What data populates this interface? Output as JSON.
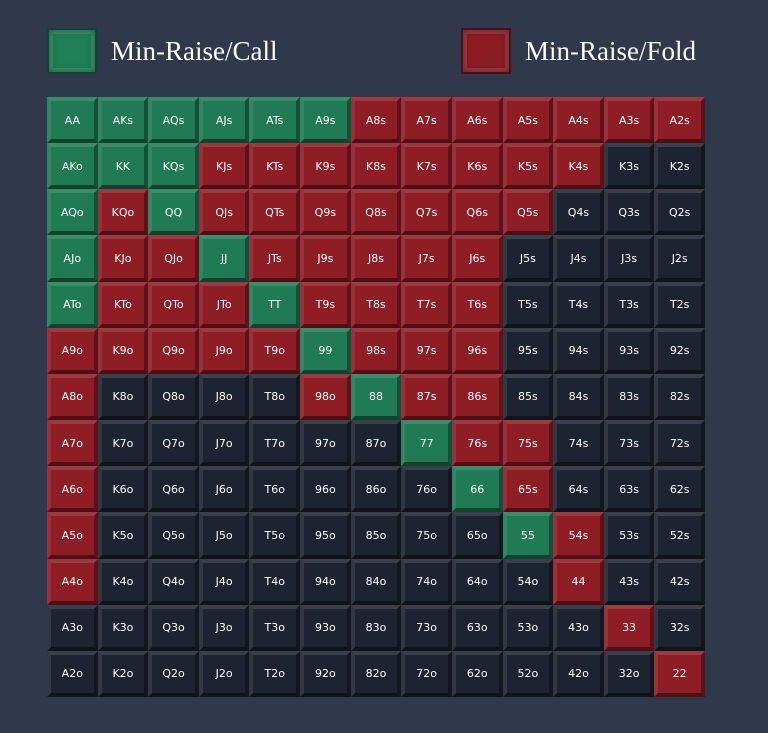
{
  "legend": {
    "call_label": "Min-Raise/Call",
    "fold_label": "Min-Raise/Fold"
  },
  "colors": {
    "call": "#1f7a55",
    "fold": "#8e1d26",
    "none": "#1d2431",
    "background": "#2f394b"
  },
  "grid": [
    [
      [
        "AA",
        "call"
      ],
      [
        "AKs",
        "call"
      ],
      [
        "AQs",
        "call"
      ],
      [
        "AJs",
        "call"
      ],
      [
        "ATs",
        "call"
      ],
      [
        "A9s",
        "call"
      ],
      [
        "A8s",
        "fold"
      ],
      [
        "A7s",
        "fold"
      ],
      [
        "A6s",
        "fold"
      ],
      [
        "A5s",
        "fold"
      ],
      [
        "A4s",
        "fold"
      ],
      [
        "A3s",
        "fold"
      ],
      [
        "A2s",
        "fold"
      ]
    ],
    [
      [
        "AKo",
        "call"
      ],
      [
        "KK",
        "call"
      ],
      [
        "KQs",
        "call"
      ],
      [
        "KJs",
        "fold"
      ],
      [
        "KTs",
        "fold"
      ],
      [
        "K9s",
        "fold"
      ],
      [
        "K8s",
        "fold"
      ],
      [
        "K7s",
        "fold"
      ],
      [
        "K6s",
        "fold"
      ],
      [
        "K5s",
        "fold"
      ],
      [
        "K4s",
        "fold"
      ],
      [
        "K3s",
        "none"
      ],
      [
        "K2s",
        "none"
      ]
    ],
    [
      [
        "AQo",
        "call"
      ],
      [
        "KQo",
        "fold"
      ],
      [
        "QQ",
        "call"
      ],
      [
        "QJs",
        "fold"
      ],
      [
        "QTs",
        "fold"
      ],
      [
        "Q9s",
        "fold"
      ],
      [
        "Q8s",
        "fold"
      ],
      [
        "Q7s",
        "fold"
      ],
      [
        "Q6s",
        "fold"
      ],
      [
        "Q5s",
        "fold"
      ],
      [
        "Q4s",
        "none"
      ],
      [
        "Q3s",
        "none"
      ],
      [
        "Q2s",
        "none"
      ]
    ],
    [
      [
        "AJo",
        "call"
      ],
      [
        "KJo",
        "fold"
      ],
      [
        "QJo",
        "fold"
      ],
      [
        "JJ",
        "call"
      ],
      [
        "JTs",
        "fold"
      ],
      [
        "J9s",
        "fold"
      ],
      [
        "J8s",
        "fold"
      ],
      [
        "J7s",
        "fold"
      ],
      [
        "J6s",
        "fold"
      ],
      [
        "J5s",
        "none"
      ],
      [
        "J4s",
        "none"
      ],
      [
        "J3s",
        "none"
      ],
      [
        "J2s",
        "none"
      ]
    ],
    [
      [
        "ATo",
        "call"
      ],
      [
        "KTo",
        "fold"
      ],
      [
        "QTo",
        "fold"
      ],
      [
        "JTo",
        "fold"
      ],
      [
        "TT",
        "call"
      ],
      [
        "T9s",
        "fold"
      ],
      [
        "T8s",
        "fold"
      ],
      [
        "T7s",
        "fold"
      ],
      [
        "T6s",
        "fold"
      ],
      [
        "T5s",
        "none"
      ],
      [
        "T4s",
        "none"
      ],
      [
        "T3s",
        "none"
      ],
      [
        "T2s",
        "none"
      ]
    ],
    [
      [
        "A9o",
        "fold"
      ],
      [
        "K9o",
        "fold"
      ],
      [
        "Q9o",
        "fold"
      ],
      [
        "J9o",
        "fold"
      ],
      [
        "T9o",
        "fold"
      ],
      [
        "99",
        "call"
      ],
      [
        "98s",
        "fold"
      ],
      [
        "97s",
        "fold"
      ],
      [
        "96s",
        "fold"
      ],
      [
        "95s",
        "none"
      ],
      [
        "94s",
        "none"
      ],
      [
        "93s",
        "none"
      ],
      [
        "92s",
        "none"
      ]
    ],
    [
      [
        "A8o",
        "fold"
      ],
      [
        "K8o",
        "none"
      ],
      [
        "Q8o",
        "none"
      ],
      [
        "J8o",
        "none"
      ],
      [
        "T8o",
        "none"
      ],
      [
        "98o",
        "fold"
      ],
      [
        "88",
        "call"
      ],
      [
        "87s",
        "fold"
      ],
      [
        "86s",
        "fold"
      ],
      [
        "85s",
        "none"
      ],
      [
        "84s",
        "none"
      ],
      [
        "83s",
        "none"
      ],
      [
        "82s",
        "none"
      ]
    ],
    [
      [
        "A7o",
        "fold"
      ],
      [
        "K7o",
        "none"
      ],
      [
        "Q7o",
        "none"
      ],
      [
        "J7o",
        "none"
      ],
      [
        "T7o",
        "none"
      ],
      [
        "97o",
        "none"
      ],
      [
        "87o",
        "none"
      ],
      [
        "77",
        "call"
      ],
      [
        "76s",
        "fold"
      ],
      [
        "75s",
        "fold"
      ],
      [
        "74s",
        "none"
      ],
      [
        "73s",
        "none"
      ],
      [
        "72s",
        "none"
      ]
    ],
    [
      [
        "A6o",
        "fold"
      ],
      [
        "K6o",
        "none"
      ],
      [
        "Q6o",
        "none"
      ],
      [
        "J6o",
        "none"
      ],
      [
        "T6o",
        "none"
      ],
      [
        "96o",
        "none"
      ],
      [
        "86o",
        "none"
      ],
      [
        "76o",
        "none"
      ],
      [
        "66",
        "call"
      ],
      [
        "65s",
        "fold"
      ],
      [
        "64s",
        "none"
      ],
      [
        "63s",
        "none"
      ],
      [
        "62s",
        "none"
      ]
    ],
    [
      [
        "A5o",
        "fold"
      ],
      [
        "K5o",
        "none"
      ],
      [
        "Q5o",
        "none"
      ],
      [
        "J5o",
        "none"
      ],
      [
        "T5o",
        "none"
      ],
      [
        "95o",
        "none"
      ],
      [
        "85o",
        "none"
      ],
      [
        "75o",
        "none"
      ],
      [
        "65o",
        "none"
      ],
      [
        "55",
        "call"
      ],
      [
        "54s",
        "fold"
      ],
      [
        "53s",
        "none"
      ],
      [
        "52s",
        "none"
      ]
    ],
    [
      [
        "A4o",
        "fold"
      ],
      [
        "K4o",
        "none"
      ],
      [
        "Q4o",
        "none"
      ],
      [
        "J4o",
        "none"
      ],
      [
        "T4o",
        "none"
      ],
      [
        "94o",
        "none"
      ],
      [
        "84o",
        "none"
      ],
      [
        "74o",
        "none"
      ],
      [
        "64o",
        "none"
      ],
      [
        "54o",
        "none"
      ],
      [
        "44",
        "fold"
      ],
      [
        "43s",
        "none"
      ],
      [
        "42s",
        "none"
      ]
    ],
    [
      [
        "A3o",
        "none"
      ],
      [
        "K3o",
        "none"
      ],
      [
        "Q3o",
        "none"
      ],
      [
        "J3o",
        "none"
      ],
      [
        "T3o",
        "none"
      ],
      [
        "93o",
        "none"
      ],
      [
        "83o",
        "none"
      ],
      [
        "73o",
        "none"
      ],
      [
        "63o",
        "none"
      ],
      [
        "53o",
        "none"
      ],
      [
        "43o",
        "none"
      ],
      [
        "33",
        "fold"
      ],
      [
        "32s",
        "none"
      ]
    ],
    [
      [
        "A2o",
        "none"
      ],
      [
        "K2o",
        "none"
      ],
      [
        "Q2o",
        "none"
      ],
      [
        "J2o",
        "none"
      ],
      [
        "T2o",
        "none"
      ],
      [
        "92o",
        "none"
      ],
      [
        "82o",
        "none"
      ],
      [
        "72o",
        "none"
      ],
      [
        "62o",
        "none"
      ],
      [
        "52o",
        "none"
      ],
      [
        "42o",
        "none"
      ],
      [
        "32o",
        "none"
      ],
      [
        "22",
        "fold"
      ]
    ]
  ]
}
